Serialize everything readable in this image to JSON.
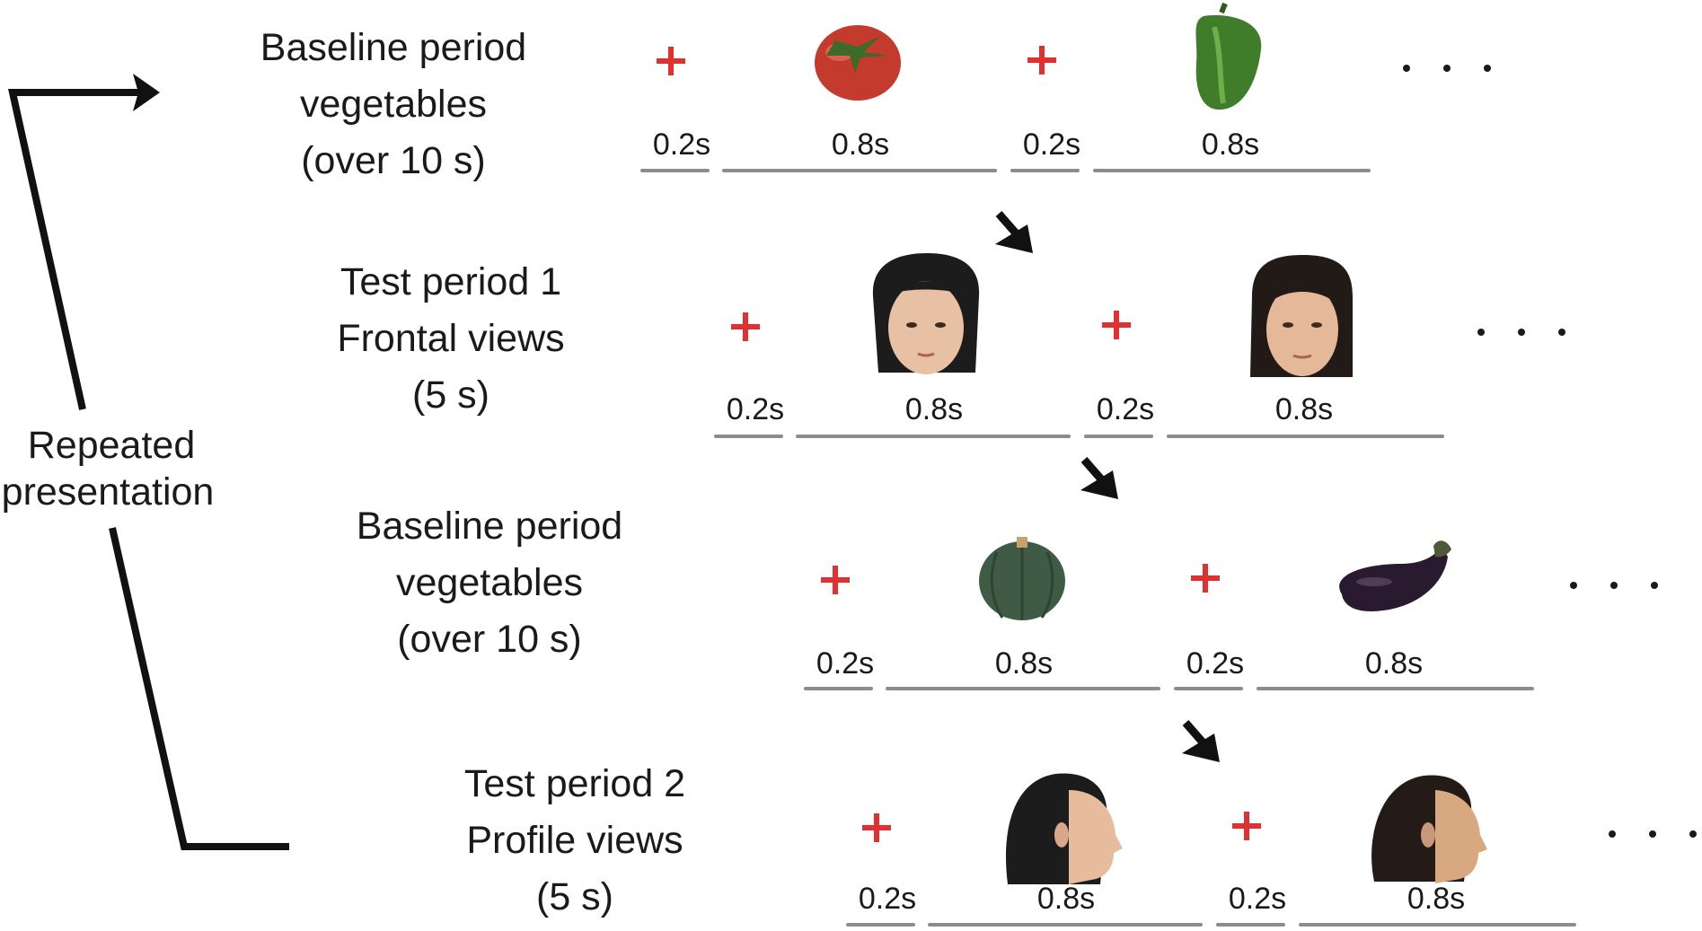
{
  "side_label": {
    "line1": "Repeated",
    "line2": "presentation"
  },
  "periods": [
    {
      "label": [
        "Baseline period",
        "vegetables",
        "(over 10 s)"
      ],
      "items": [
        "tomato-image",
        "green-pepper-image"
      ],
      "fixation_duration": "0.2s",
      "stimulus_duration": "0.8s"
    },
    {
      "label": [
        "Test period 1",
        "Frontal views",
        "(5 s)"
      ],
      "items": [
        "face-frontal-image",
        "face-frontal-image"
      ],
      "fixation_duration": "0.2s",
      "stimulus_duration": "0.8s"
    },
    {
      "label": [
        "Baseline period",
        "vegetables",
        "(over 10 s)"
      ],
      "items": [
        "pumpkin-image",
        "eggplant-image"
      ],
      "fixation_duration": "0.2s",
      "stimulus_duration": "0.8s"
    },
    {
      "label": [
        "Test period 2",
        "Profile views",
        "(5 s)"
      ],
      "items": [
        "face-profile-image",
        "face-profile-image"
      ],
      "fixation_duration": "0.2s",
      "stimulus_duration": "0.8s"
    }
  ],
  "colors": {
    "fixation_cross": "#e03030",
    "timeline": "#8c8c8c",
    "frame": "#111111"
  }
}
